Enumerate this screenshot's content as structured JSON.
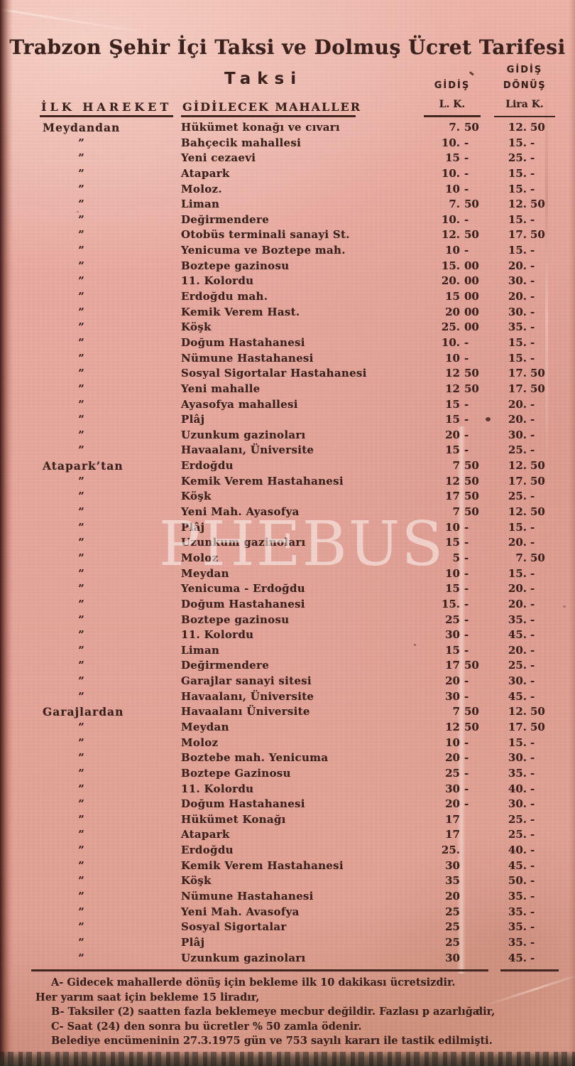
{
  "document": {
    "title": "Trabzon Şehir İçi Taksi ve Dolmuş Ücret Tarifesi",
    "section_heading": "Taksi",
    "watermark": "PHEBUS",
    "ditto_mark": "”"
  },
  "columns": {
    "origin_header": "İLK HAREKET",
    "destination_header": "GİDİLECEK MAHALLER",
    "oneway_header_line1": "GİDİŞ",
    "oneway_header_line2": "L. K.",
    "roundtrip_header_line1": "GİDİŞ",
    "roundtrip_header_line2": "DÖNÜŞ",
    "roundtrip_header_line3": "Lira K."
  },
  "fares": [
    {
      "origin": "Meydandan",
      "rows": [
        {
          "destination": "Hükümet konağı ve cıvarı",
          "ow_l": "7.",
          "ow_k": "50",
          "rt_l": "12.",
          "rt_k": "50"
        },
        {
          "destination": "Bahçecik mahallesi",
          "ow_l": "10.",
          "ow_k": "-",
          "rt_l": "15.",
          "rt_k": "-"
        },
        {
          "destination": "Yeni cezaevi",
          "ow_l": "15",
          "ow_k": "-",
          "rt_l": "25.",
          "rt_k": "-"
        },
        {
          "destination": "Atapark",
          "ow_l": "10.",
          "ow_k": "-",
          "rt_l": "15.",
          "rt_k": "-"
        },
        {
          "destination": "Moloz.",
          "ow_l": "10",
          "ow_k": "-",
          "rt_l": "15.",
          "rt_k": "-"
        },
        {
          "destination": "Liman",
          "ow_l": "7.",
          "ow_k": "50",
          "rt_l": "12.",
          "rt_k": "50"
        },
        {
          "destination": "Değirmendere",
          "ow_l": "10.",
          "ow_k": "-",
          "rt_l": "15.",
          "rt_k": "-"
        },
        {
          "destination": "Otobüs terminali sanayi St.",
          "ow_l": "12.",
          "ow_k": "50",
          "rt_l": "17.",
          "rt_k": "50"
        },
        {
          "destination": "Yenicuma ve Boztepe mah.",
          "ow_l": "10",
          "ow_k": "-",
          "rt_l": "15.",
          "rt_k": "-"
        },
        {
          "destination": "Boztepe gazinosu",
          "ow_l": "15.",
          "ow_k": "00",
          "rt_l": "20.",
          "rt_k": "-"
        },
        {
          "destination": "11. Kolordu",
          "ow_l": "20.",
          "ow_k": "00",
          "rt_l": "30.",
          "rt_k": "-"
        },
        {
          "destination": "Erdoğdu mah.",
          "ow_l": "15",
          "ow_k": "00",
          "rt_l": "20.",
          "rt_k": "-"
        },
        {
          "destination": "Kemik Verem Hast.",
          "ow_l": "20",
          "ow_k": "00",
          "rt_l": "30.",
          "rt_k": "-"
        },
        {
          "destination": "Köşk",
          "ow_l": "25.",
          "ow_k": "00",
          "rt_l": "35.",
          "rt_k": "-"
        },
        {
          "destination": "Doğum Hastahanesi",
          "ow_l": "10.",
          "ow_k": "-",
          "rt_l": "15.",
          "rt_k": "-"
        },
        {
          "destination": "Nümune Hastahanesi",
          "ow_l": "10",
          "ow_k": "-",
          "rt_l": "15.",
          "rt_k": "-"
        },
        {
          "destination": "Sosyal Sigortalar Hastahanesi",
          "ow_l": "12",
          "ow_k": "50",
          "rt_l": "17.",
          "rt_k": "50"
        },
        {
          "destination": "Yeni mahalle",
          "ow_l": "12",
          "ow_k": "50",
          "rt_l": "17.",
          "rt_k": "50"
        },
        {
          "destination": "Ayasofya mahallesi",
          "ow_l": "15",
          "ow_k": "-",
          "rt_l": "20.",
          "rt_k": "-"
        },
        {
          "destination": "Plâj",
          "ow_l": "15",
          "ow_k": "-",
          "rt_l": "20.",
          "rt_k": "-"
        },
        {
          "destination": "Uzunkum gazinoları",
          "ow_l": "20",
          "ow_k": "-",
          "rt_l": "30.",
          "rt_k": "-"
        },
        {
          "destination": "Havaalanı, Üniversite",
          "ow_l": "15",
          "ow_k": "-",
          "rt_l": "25.",
          "rt_k": "-"
        }
      ]
    },
    {
      "origin": "Atapark’tan",
      "rows": [
        {
          "destination": "Erdoğdu",
          "ow_l": "7",
          "ow_k": "50",
          "rt_l": "12.",
          "rt_k": "50"
        },
        {
          "destination": "Kemik Verem Hastahanesi",
          "ow_l": "12",
          "ow_k": "50",
          "rt_l": "17.",
          "rt_k": "50"
        },
        {
          "destination": "Köşk",
          "ow_l": "17",
          "ow_k": "50",
          "rt_l": "25.",
          "rt_k": "-"
        },
        {
          "destination": "Yeni Mah. Ayasofya",
          "ow_l": "7",
          "ow_k": "50",
          "rt_l": "12.",
          "rt_k": "50"
        },
        {
          "destination": "Plâj",
          "ow_l": "10",
          "ow_k": "-",
          "rt_l": "15.",
          "rt_k": "-"
        },
        {
          "destination": "Uzunkum gazinoları",
          "ow_l": "15",
          "ow_k": "-",
          "rt_l": "20.",
          "rt_k": "-"
        },
        {
          "destination": "Moloz",
          "ow_l": "5",
          "ow_k": "-",
          "rt_l": "7.",
          "rt_k": "50"
        },
        {
          "destination": "Meydan",
          "ow_l": "10",
          "ow_k": "-",
          "rt_l": "15.",
          "rt_k": "-"
        },
        {
          "destination": "Yenicuma - Erdoğdu",
          "ow_l": "15",
          "ow_k": "-",
          "rt_l": "20.",
          "rt_k": "-"
        },
        {
          "destination": "Doğum Hastahanesi",
          "ow_l": "15.",
          "ow_k": "-",
          "rt_l": "20.",
          "rt_k": "-"
        },
        {
          "destination": "Boztepe gazinosu",
          "ow_l": "25",
          "ow_k": "-",
          "rt_l": "35.",
          "rt_k": "-"
        },
        {
          "destination": "11. Kolordu",
          "ow_l": "30",
          "ow_k": "-",
          "rt_l": "45.",
          "rt_k": "-"
        },
        {
          "destination": "Liman",
          "ow_l": "15",
          "ow_k": "-",
          "rt_l": "20.",
          "rt_k": "-"
        },
        {
          "destination": "Değirmendere",
          "ow_l": "17",
          "ow_k": "50",
          "rt_l": "25.",
          "rt_k": "-"
        },
        {
          "destination": "Garajlar sanayi sitesi",
          "ow_l": "20",
          "ow_k": "-",
          "rt_l": "30.",
          "rt_k": "-"
        },
        {
          "destination": "Havaalanı, Üniversite",
          "ow_l": "30",
          "ow_k": "-",
          "rt_l": "45.",
          "rt_k": "-"
        }
      ]
    },
    {
      "origin": "Garajlardan",
      "rows": [
        {
          "destination": "Havaalanı Üniversite",
          "ow_l": "7",
          "ow_k": "50",
          "rt_l": "12.",
          "rt_k": "50"
        },
        {
          "destination": "Meydan",
          "ow_l": "12",
          "ow_k": "50",
          "rt_l": "17.",
          "rt_k": "50"
        },
        {
          "destination": "Moloz",
          "ow_l": "10",
          "ow_k": "-",
          "rt_l": "15.",
          "rt_k": "-"
        },
        {
          "destination": "Boztebe mah. Yenicuma",
          "ow_l": "20",
          "ow_k": "-",
          "rt_l": "30.",
          "rt_k": "-"
        },
        {
          "destination": "Boztepe Gazinosu",
          "ow_l": "25",
          "ow_k": "-",
          "rt_l": "35.",
          "rt_k": "-"
        },
        {
          "destination": "11. Kolordu",
          "ow_l": "30",
          "ow_k": "-",
          "rt_l": "40.",
          "rt_k": "-"
        },
        {
          "destination": "Doğum Hastahanesi",
          "ow_l": "20",
          "ow_k": "-",
          "rt_l": "30.",
          "rt_k": "-"
        },
        {
          "destination": "Hükümet Konağı",
          "ow_l": "17",
          "ow_k": "",
          "rt_l": "25.",
          "rt_k": "-"
        },
        {
          "destination": "Atapark",
          "ow_l": "17",
          "ow_k": "",
          "rt_l": "25.",
          "rt_k": "-"
        },
        {
          "destination": "Erdoğdu",
          "ow_l": "25.",
          "ow_k": "",
          "rt_l": "40.",
          "rt_k": "-"
        },
        {
          "destination": "Kemik Verem Hastahanesi",
          "ow_l": "30",
          "ow_k": "",
          "rt_l": "45.",
          "rt_k": "-"
        },
        {
          "destination": "Köşk",
          "ow_l": "35",
          "ow_k": "",
          "rt_l": "50.",
          "rt_k": "-"
        },
        {
          "destination": "Nümune Hastahanesi",
          "ow_l": "20",
          "ow_k": "",
          "rt_l": "35.",
          "rt_k": "-"
        },
        {
          "destination": "Yeni Mah. Avasofya",
          "ow_l": "25",
          "ow_k": "",
          "rt_l": "35.",
          "rt_k": "-"
        },
        {
          "destination": "Sosyal Sigortalar",
          "ow_l": "25",
          "ow_k": "",
          "rt_l": "35.",
          "rt_k": "-"
        },
        {
          "destination": "Plâj",
          "ow_l": "25",
          "ow_k": "",
          "rt_l": "35.",
          "rt_k": "-"
        },
        {
          "destination": "Uzunkum gazinoları",
          "ow_l": "30",
          "ow_k": "",
          "rt_l": "45.",
          "rt_k": "-"
        }
      ]
    }
  ],
  "notes": [
    {
      "text": "A- Gidecek mahallerde dönüş için bekleme ilk 10 dakikası ücretsizdir.",
      "indent": true,
      "tail": ""
    },
    {
      "text": "Her yarım saat için bekleme 15 liradır,",
      "indent": false,
      "tail": ""
    },
    {
      "text": "B- Taksiler (2) saatten fazla beklemeye mecbur değildir. Fazlası p azarlığa",
      "indent": true,
      "tail": "dir,"
    },
    {
      "text": "C- Saat (24) den sonra bu ücretler % 50 zamla ödenir.",
      "indent": true,
      "tail": ""
    },
    {
      "text": "Belediye encümeninin 27.3.1975 gün ve 753 sayılı kararı ile tastik edilmişti.",
      "indent": true,
      "tail": ""
    }
  ],
  "colors": {
    "paper": "#e4a69d",
    "ink": "#3a211c",
    "watermark": "rgba(252,248,244,0.55)"
  }
}
